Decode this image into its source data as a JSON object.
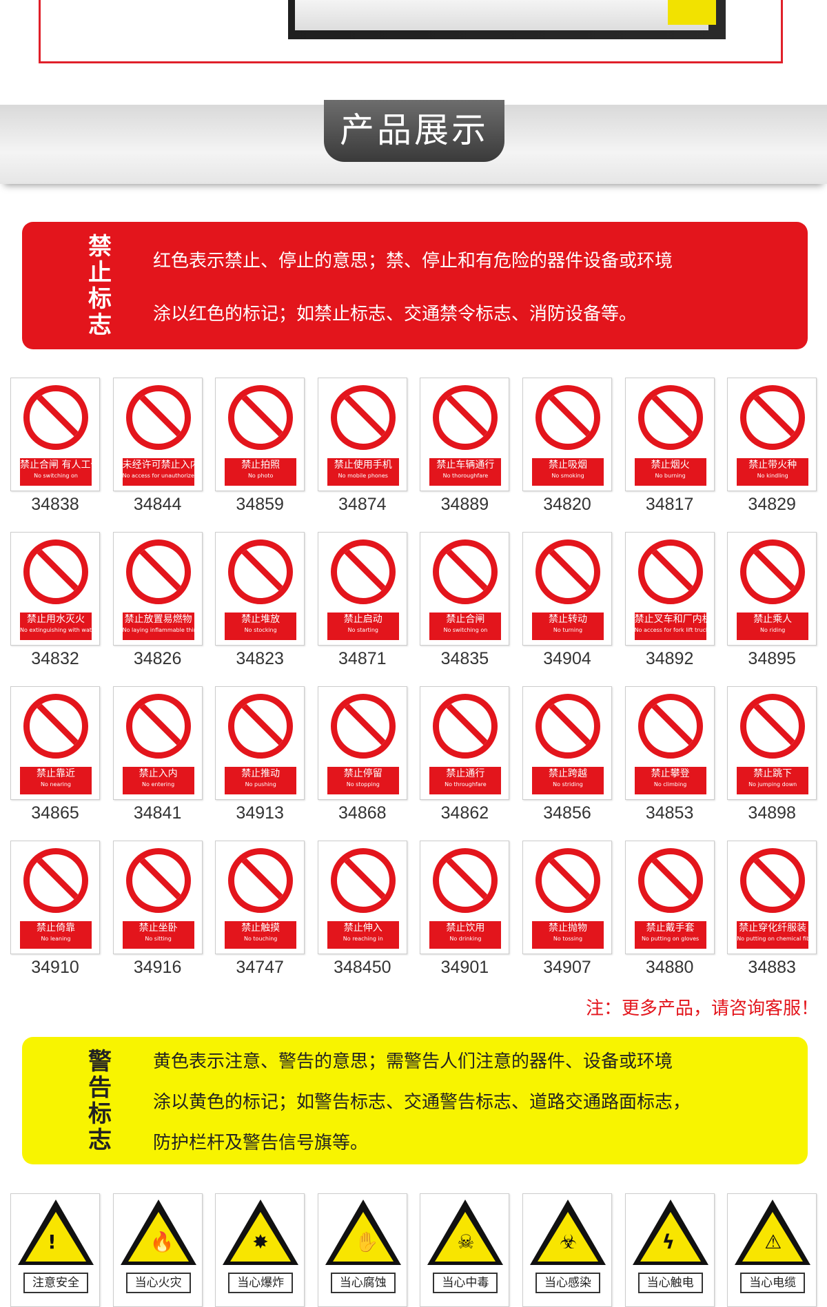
{
  "banner": {
    "title": "产品展示"
  },
  "prohibition": {
    "title": "禁止标志",
    "line1": "红色表示禁止、停止的意思；禁、停止和有危险的器件设备或环境",
    "line2": "涂以红色的标记；如禁止标志、交通禁令标志、消防设备等。",
    "color": "#e3151c"
  },
  "prohibition_signs": [
    {
      "cn": "禁止合闸 有人工作",
      "en": "No switching on",
      "code": "34838"
    },
    {
      "cn": "未经许可禁止入内",
      "en": "No access for unauthorized persons",
      "code": "34844"
    },
    {
      "cn": "禁止拍照",
      "en": "No photo",
      "code": "34859"
    },
    {
      "cn": "禁止使用手机",
      "en": "No mobile phones",
      "code": "34874"
    },
    {
      "cn": "禁止车辆通行",
      "en": "No thoroughfare",
      "code": "34889"
    },
    {
      "cn": "禁止吸烟",
      "en": "No smoking",
      "code": "34820"
    },
    {
      "cn": "禁止烟火",
      "en": "No burning",
      "code": "34817"
    },
    {
      "cn": "禁止带火种",
      "en": "No kindling",
      "code": "34829"
    },
    {
      "cn": "禁止用水灭火",
      "en": "No extinguishing with water",
      "code": "34832"
    },
    {
      "cn": "禁止放置易燃物",
      "en": "No laying inflammable thing",
      "code": "34826"
    },
    {
      "cn": "禁止堆放",
      "en": "No stocking",
      "code": "34823"
    },
    {
      "cn": "禁止启动",
      "en": "No starting",
      "code": "34871"
    },
    {
      "cn": "禁止合闸",
      "en": "No switching on",
      "code": "34835"
    },
    {
      "cn": "禁止转动",
      "en": "No turning",
      "code": "34904"
    },
    {
      "cn": "禁止叉车和厂内机动车辆通行",
      "en": "No access for fork lift trucks",
      "code": "34892"
    },
    {
      "cn": "禁止乘人",
      "en": "No riding",
      "code": "34895"
    },
    {
      "cn": "禁止靠近",
      "en": "No nearing",
      "code": "34865"
    },
    {
      "cn": "禁止入内",
      "en": "No entering",
      "code": "34841"
    },
    {
      "cn": "禁止推动",
      "en": "No pushing",
      "code": "34913"
    },
    {
      "cn": "禁止停留",
      "en": "No stopping",
      "code": "34868"
    },
    {
      "cn": "禁止通行",
      "en": "No throughfare",
      "code": "34862"
    },
    {
      "cn": "禁止跨越",
      "en": "No striding",
      "code": "34856"
    },
    {
      "cn": "禁止攀登",
      "en": "No climbing",
      "code": "34853"
    },
    {
      "cn": "禁止跳下",
      "en": "No jumping down",
      "code": "34898"
    },
    {
      "cn": "禁止倚靠",
      "en": "No leaning",
      "code": "34910"
    },
    {
      "cn": "禁止坐卧",
      "en": "No sitting",
      "code": "34916"
    },
    {
      "cn": "禁止触摸",
      "en": "No touching",
      "code": "34747"
    },
    {
      "cn": "禁止伸入",
      "en": "No reaching in",
      "code": "348450"
    },
    {
      "cn": "禁止饮用",
      "en": "No drinking",
      "code": "34901"
    },
    {
      "cn": "禁止抛物",
      "en": "No tossing",
      "code": "34907"
    },
    {
      "cn": "禁止戴手套",
      "en": "No putting on gloves",
      "code": "34880"
    },
    {
      "cn": "禁止穿化纤服装",
      "en": "No putting on chemical fibre clothings",
      "code": "34883"
    }
  ],
  "note": "注：更多产品，请咨询客服！",
  "warning": {
    "title": "警告标志",
    "line1": "黄色表示注意、警告的意思；需警告人们注意的器件、设备或环境",
    "line2": "涂以黄色的标记；如警告标志、交通警告标志、道路交通路面标志，",
    "line3": "防护栏杆及警告信号旗等。",
    "color": "#f8f400"
  },
  "warning_signs": [
    {
      "cn": "注意安全",
      "icon": "!"
    },
    {
      "cn": "当心火灾",
      "icon": "🔥"
    },
    {
      "cn": "当心爆炸",
      "icon": "✸"
    },
    {
      "cn": "当心腐蚀",
      "icon": "✋"
    },
    {
      "cn": "当心中毒",
      "icon": "☠"
    },
    {
      "cn": "当心感染",
      "icon": "☣"
    },
    {
      "cn": "当心触电",
      "icon": "ϟ"
    },
    {
      "cn": "当心电缆",
      "icon": "⚠"
    }
  ]
}
